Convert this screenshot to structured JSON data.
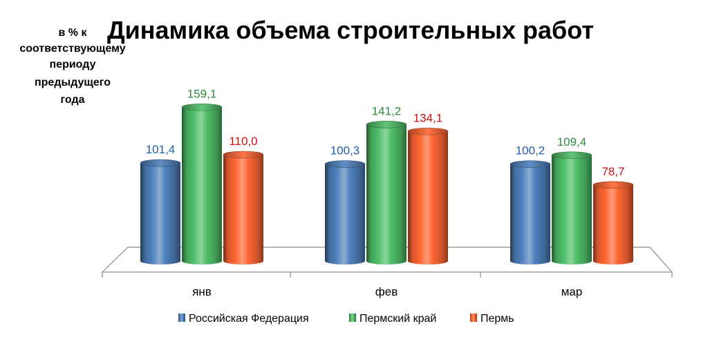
{
  "chart_data": {
    "type": "bar",
    "title": "Динамика объема строительных работ",
    "ylabel_lines": [
      "в % к",
      "соответствующему",
      "периоду",
      "предыдущего",
      "года"
    ],
    "categories": [
      "янв",
      "фев",
      "мар"
    ],
    "series": [
      {
        "name": "Российская Федерация",
        "values": [
          101.4,
          100.3,
          100.2
        ],
        "labels": [
          "101,4",
          "100,3",
          "100,2"
        ],
        "color": "#4f81bd",
        "label_color": "#1f5fa8"
      },
      {
        "name": "Пермский край",
        "values": [
          159.1,
          141.2,
          109.4
        ],
        "labels": [
          "159,1",
          "141,2",
          "109,4"
        ],
        "color": "#4fbf68",
        "label_color": "#2e8b3e"
      },
      {
        "name": "Пермь",
        "values": [
          110.0,
          134.1,
          78.7
        ],
        "labels": [
          "110,0",
          "134,1",
          "78,7"
        ],
        "color": "#ff6633",
        "label_color": "#cc1111"
      }
    ],
    "legend_position": "bottom",
    "grid": false,
    "bar_style": "3d-cylinder"
  }
}
